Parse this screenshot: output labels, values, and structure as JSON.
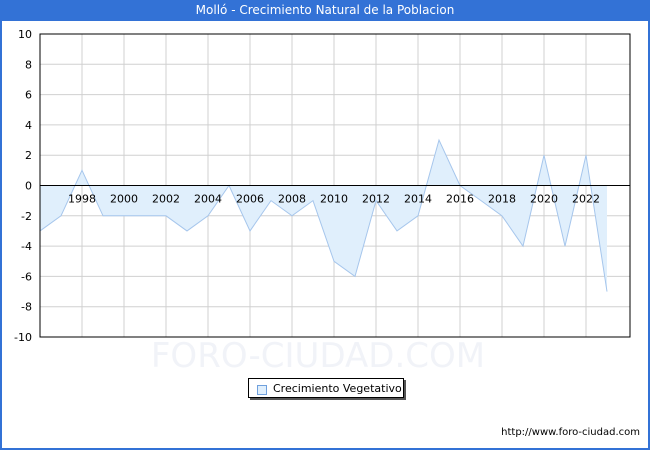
{
  "header": {
    "title": "Molló - Crecimiento Natural de la Poblacion"
  },
  "legend": {
    "label": "Crecimiento Vegetativo"
  },
  "footer": {
    "url": "http://www.foro-ciudad.com"
  },
  "watermark": {
    "text": "FORO-CIUDAD.COM"
  },
  "colors": {
    "title_bar": "#3372d6",
    "fill": "#e0effc",
    "line": "#a6c6ec",
    "grid": "#d0d0d0"
  },
  "chart_data": {
    "type": "area",
    "title": "Molló - Crecimiento Natural de la Poblacion",
    "xlabel": "",
    "ylabel": "",
    "ylim": [
      -10,
      10
    ],
    "yticks": [
      10,
      8,
      6,
      4,
      2,
      0,
      -2,
      -4,
      -6,
      -8,
      -10
    ],
    "xtick_labels": [
      "1998",
      "2000",
      "2002",
      "2004",
      "2006",
      "2008",
      "2010",
      "2012",
      "2014",
      "2016",
      "2018",
      "2020",
      "2022"
    ],
    "grid": true,
    "legend_position": "bottom-center",
    "x": [
      1996,
      1997,
      1998,
      1999,
      2000,
      2001,
      2002,
      2003,
      2004,
      2005,
      2006,
      2007,
      2008,
      2009,
      2010,
      2011,
      2012,
      2013,
      2014,
      2015,
      2016,
      2017,
      2018,
      2019,
      2020,
      2021,
      2022,
      2023
    ],
    "series": [
      {
        "name": "Crecimiento Vegetativo",
        "values": [
          -3,
          -2,
          1,
          -2,
          -2,
          -2,
          -2,
          -3,
          -2,
          0,
          -3,
          -1,
          -2,
          -1,
          -5,
          -6,
          -1,
          -3,
          -2,
          3,
          0,
          -1,
          -2,
          -4,
          2,
          -4,
          2,
          -7
        ]
      }
    ]
  }
}
